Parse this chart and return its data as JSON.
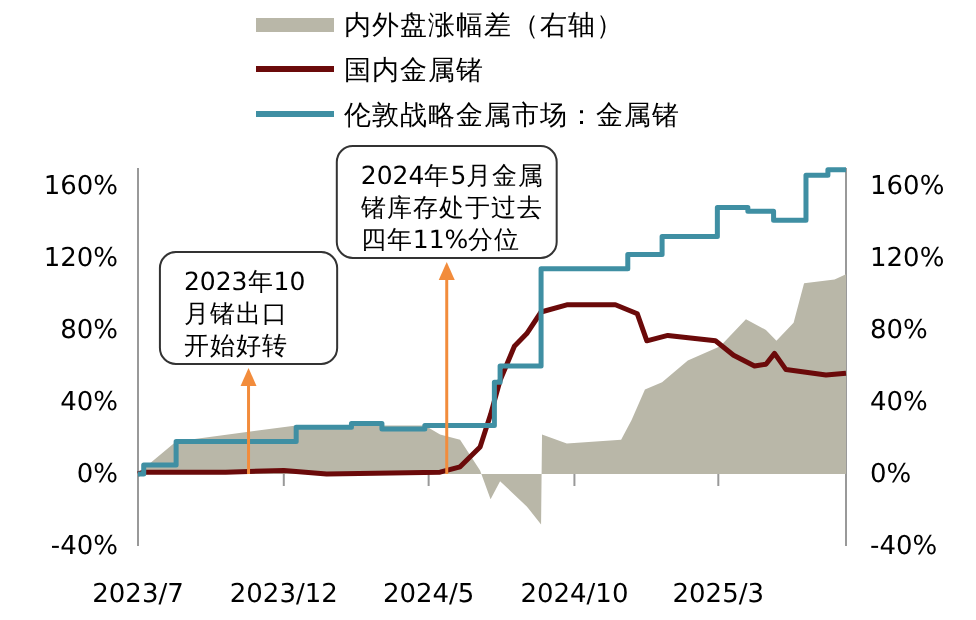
{
  "chart_data": {
    "type": "line",
    "xlim": [
      "2023-07-01",
      "2025-07-13"
    ],
    "xticks": [
      {
        "value": "2023-07-01",
        "label": "2023/7"
      },
      {
        "value": "2023-12-01",
        "label": "2023/12"
      },
      {
        "value": "2024-05-01",
        "label": "2024/5"
      },
      {
        "value": "2024-10-01",
        "label": "2024/10"
      },
      {
        "value": "2025-03-01",
        "label": "2025/3"
      }
    ],
    "ylim": [
      -40,
      170
    ],
    "yticks": [
      {
        "value": -40,
        "label": "-40%"
      },
      {
        "value": 0,
        "label": "0%"
      },
      {
        "value": 40,
        "label": "40%"
      },
      {
        "value": 80,
        "label": "80%"
      },
      {
        "value": 120,
        "label": "120%"
      },
      {
        "value": 160,
        "label": "160%"
      }
    ],
    "y2lim": [
      -40,
      170
    ],
    "y2ticks": [
      {
        "value": -40,
        "label": "-40%"
      },
      {
        "value": 0,
        "label": "0%"
      },
      {
        "value": 40,
        "label": "40%"
      },
      {
        "value": 80,
        "label": "80%"
      },
      {
        "value": 120,
        "label": "120%"
      },
      {
        "value": 160,
        "label": "160%"
      }
    ],
    "legend": "top",
    "grid": false,
    "series": [
      {
        "name": "内外盘涨幅差（右轴）",
        "type": "area",
        "axis": "y2",
        "color": "#b9b7a8",
        "x": [
          "2023-07-01",
          "2023-07-07",
          "2023-08-10",
          "2023-12-14",
          "2024-04-27",
          "2024-05-13",
          "2024-06-03",
          "2024-06-24",
          "2024-07-05",
          "2024-07-15",
          "2024-08-12",
          "2024-08-27",
          "2024-08-28",
          "2024-09-23",
          "2024-11-19",
          "2024-11-30",
          "2024-12-14",
          "2025-01-01",
          "2025-01-28",
          "2025-03-03",
          "2025-03-30",
          "2025-04-20",
          "2025-05-01",
          "2025-05-19",
          "2025-05-30",
          "2025-07-01",
          "2025-07-13"
        ],
        "values": [
          0,
          3,
          18,
          27,
          27,
          22,
          19,
          2,
          -14,
          -4,
          -18,
          -28,
          22,
          17,
          19,
          30,
          47,
          51,
          63,
          71,
          86,
          80,
          74,
          84,
          106,
          108,
          111
        ]
      },
      {
        "name": "国内金属锗",
        "type": "line",
        "color": "#6b0a0a",
        "x": [
          "2023-07-01",
          "2023-07-07",
          "2023-10-01",
          "2023-12-01",
          "2024-01-15",
          "2024-05-13",
          "2024-06-03",
          "2024-06-24",
          "2024-07-05",
          "2024-07-15",
          "2024-07-30",
          "2024-08-12",
          "2024-08-27",
          "2024-09-23",
          "2024-11-13",
          "2024-12-06",
          "2024-12-16",
          "2025-01-07",
          "2025-02-26",
          "2025-03-17",
          "2025-04-08",
          "2025-04-20",
          "2025-04-29",
          "2025-05-11",
          "2025-06-22",
          "2025-07-13"
        ],
        "values": [
          0,
          1,
          1,
          2,
          0,
          1,
          4,
          15,
          33,
          52,
          71,
          78,
          90,
          94,
          94,
          89,
          74,
          77,
          74,
          66,
          60,
          61,
          67,
          58,
          55,
          56
        ]
      },
      {
        "name": "伦敦战略金属市场：金属锗",
        "type": "step",
        "color": "#3f8fa3",
        "x": [
          "2023-07-01",
          "2023-07-07",
          "2023-08-10",
          "2023-12-14",
          "2024-02-10",
          "2024-03-13",
          "2024-04-27",
          "2024-07-09",
          "2024-07-15",
          "2024-08-27",
          "2024-11-26",
          "2025-01-01",
          "2025-02-28",
          "2025-04-01",
          "2025-04-28",
          "2025-06-01",
          "2025-06-24",
          "2025-07-13"
        ],
        "values": [
          0,
          5,
          18,
          26,
          28,
          25,
          27,
          51,
          60,
          114,
          122,
          132,
          148,
          146,
          141,
          166,
          169,
          169
        ]
      }
    ],
    "annotations": [
      {
        "text": "2023年10月锗出口开始好转",
        "x": "2023-10-25",
        "y": 0
      },
      {
        "text": "2024年5月金属锗库存处于过去四年11%分位",
        "x": "2024-05-20",
        "y": 0
      }
    ]
  }
}
